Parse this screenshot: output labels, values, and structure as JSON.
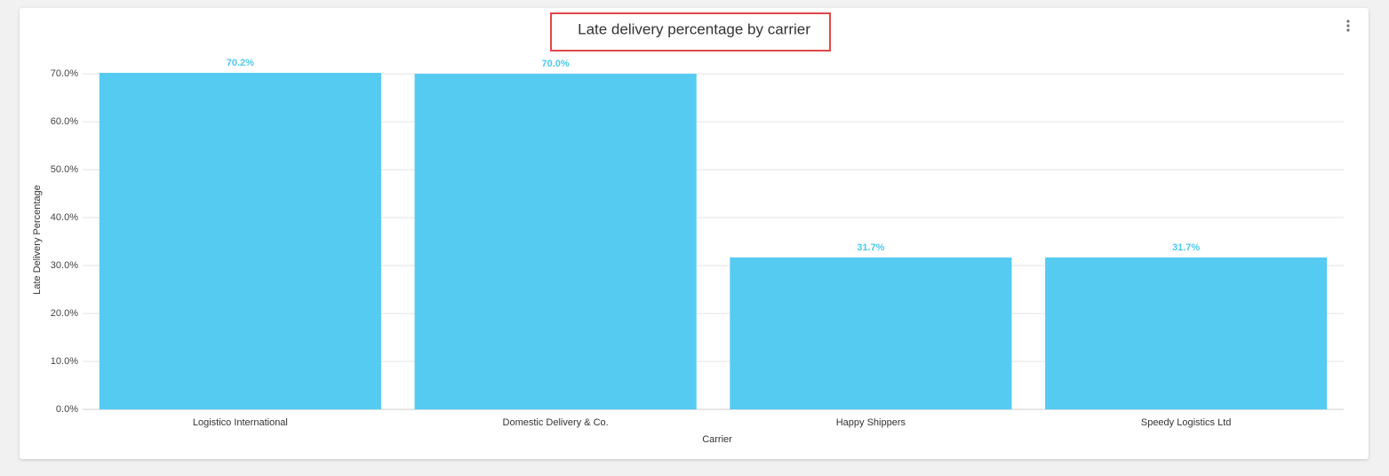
{
  "chart_data": {
    "type": "bar",
    "title": "Late delivery percentage by carrier",
    "x_label": "Carrier",
    "y_label": "Late Delivery Percentage",
    "categories": [
      "Logistico International",
      "Domestic Delivery & Co.",
      "Happy Shippers",
      "Speedy Logistics Ltd"
    ],
    "values": [
      70.2,
      70.0,
      31.7,
      31.7
    ],
    "value_labels": [
      "70.2%",
      "70.0%",
      "31.7%",
      "31.7%"
    ],
    "color": "#56cbf1",
    "ylim": [
      0,
      70.2
    ],
    "yticks": [
      {
        "value": 0,
        "label": "0.0%"
      },
      {
        "value": 10,
        "label": "10.0%"
      },
      {
        "value": 20,
        "label": "20.0%"
      },
      {
        "value": 30,
        "label": "30.0%"
      },
      {
        "value": 40,
        "label": "40.0%"
      },
      {
        "value": 50,
        "label": "50.0%"
      },
      {
        "value": 60,
        "label": "60.0%"
      },
      {
        "value": 70,
        "label": "70.0%"
      }
    ],
    "grid": true
  }
}
